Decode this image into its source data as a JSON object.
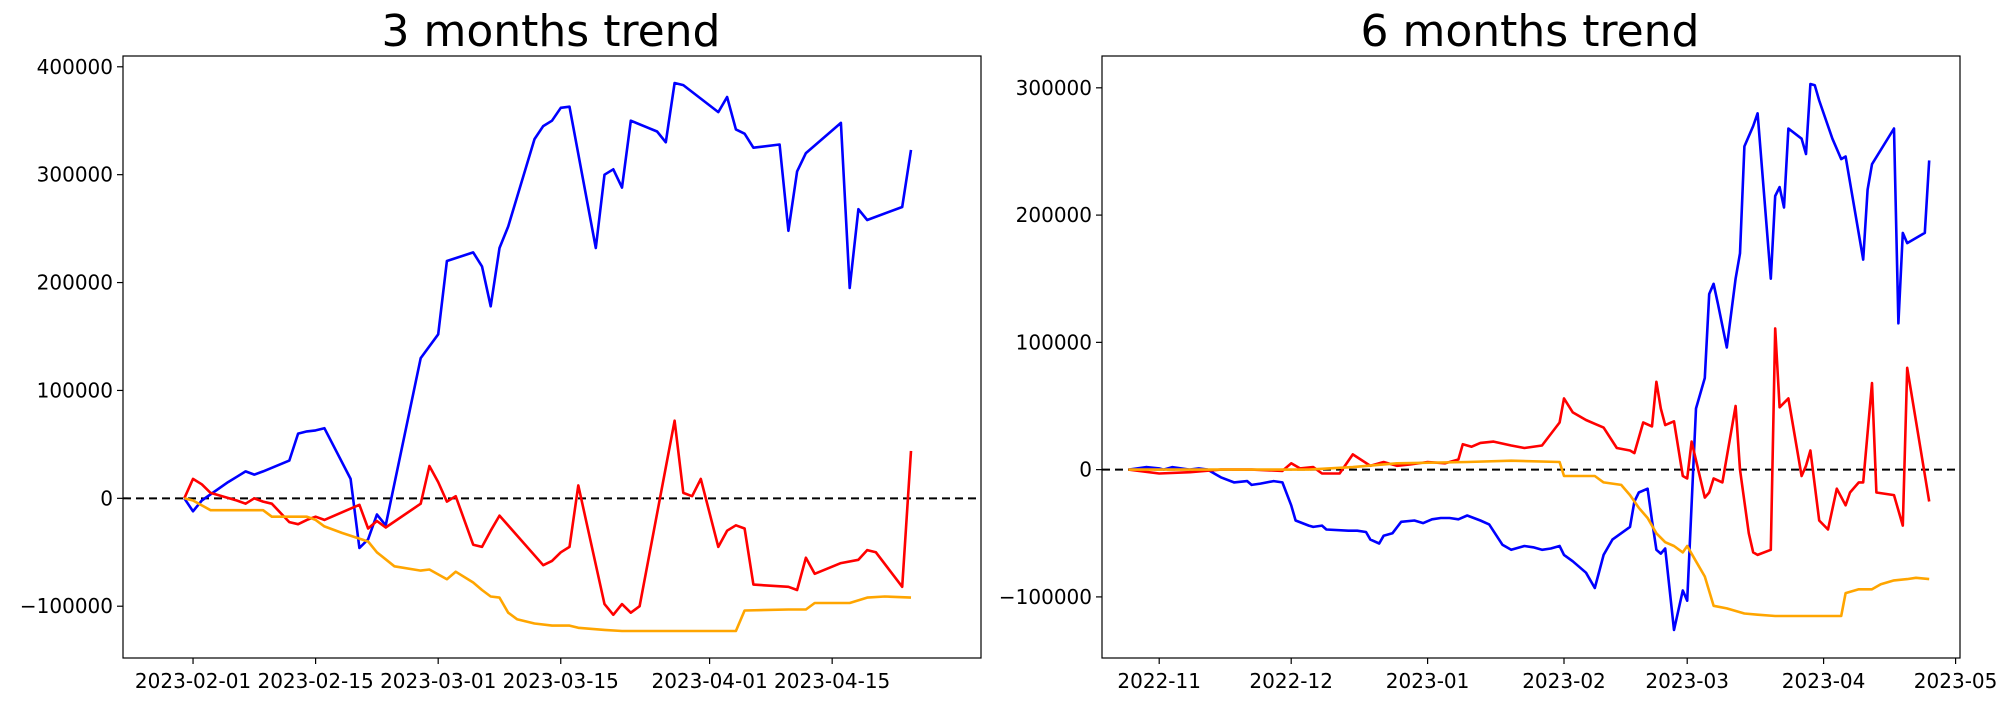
{
  "chart_data": [
    {
      "type": "line",
      "title": "3 months trend",
      "xlabel": "",
      "ylabel": "",
      "x_type": "date",
      "xlim": [
        "2023-01-24",
        "2023-05-02"
      ],
      "ylim": [
        -148000,
        410000
      ],
      "x_ticks": [
        {
          "value": "2023-02-01",
          "label": "2023-02-01"
        },
        {
          "value": "2023-02-15",
          "label": "2023-02-15"
        },
        {
          "value": "2023-03-01",
          "label": "2023-03-01"
        },
        {
          "value": "2023-03-15",
          "label": "2023-03-15"
        },
        {
          "value": "2023-04-01",
          "label": "2023-04-01"
        },
        {
          "value": "2023-04-15",
          "label": "2023-04-15"
        }
      ],
      "y_ticks": [
        {
          "value": -100000,
          "label": "−100000"
        },
        {
          "value": 0,
          "label": "0"
        },
        {
          "value": 100000,
          "label": "100000"
        },
        {
          "value": 200000,
          "label": "200000"
        },
        {
          "value": 300000,
          "label": "300000"
        },
        {
          "value": 400000,
          "label": "400000"
        }
      ],
      "grid": false,
      "reference_line": {
        "y": 0,
        "style": "dashed",
        "color": "#000000"
      },
      "series": [
        {
          "color": "#0000ff",
          "x": [
            "2023-01-31",
            "2023-02-01",
            "2023-02-02",
            "2023-02-05",
            "2023-02-06",
            "2023-02-07",
            "2023-02-08",
            "2023-02-09",
            "2023-02-12",
            "2023-02-13",
            "2023-02-14",
            "2023-02-15",
            "2023-02-16",
            "2023-02-19",
            "2023-02-20",
            "2023-02-21",
            "2023-02-22",
            "2023-02-23",
            "2023-02-27",
            "2023-03-01",
            "2023-03-02",
            "2023-03-05",
            "2023-03-06",
            "2023-03-07",
            "2023-03-08",
            "2023-03-09",
            "2023-03-12",
            "2023-03-13",
            "2023-03-14",
            "2023-03-15",
            "2023-03-16",
            "2023-03-19",
            "2023-03-20",
            "2023-03-21",
            "2023-03-22",
            "2023-03-23",
            "2023-03-26",
            "2023-03-27",
            "2023-03-28",
            "2023-03-29",
            "2023-04-02",
            "2023-04-03",
            "2023-04-04",
            "2023-04-05",
            "2023-04-06",
            "2023-04-09",
            "2023-04-10",
            "2023-04-11",
            "2023-04-12",
            "2023-04-16",
            "2023-04-17",
            "2023-04-18",
            "2023-04-19",
            "2023-04-23",
            "2023-04-24"
          ],
          "values": [
            0,
            -12000,
            -2000,
            15000,
            20000,
            25000,
            22000,
            25000,
            35000,
            60000,
            62000,
            63000,
            65000,
            18000,
            -46000,
            -38000,
            -15000,
            -25000,
            130000,
            152000,
            220000,
            228000,
            215000,
            178000,
            232000,
            252000,
            333000,
            345000,
            350000,
            362000,
            363000,
            232000,
            300000,
            305000,
            288000,
            350000,
            340000,
            330000,
            385000,
            383000,
            358000,
            372000,
            342000,
            338000,
            325000,
            328000,
            248000,
            303000,
            320000,
            348000,
            195000,
            268000,
            258000,
            270000,
            323000
          ]
        },
        {
          "color": "#ff0000",
          "x": [
            "2023-01-31",
            "2023-02-01",
            "2023-02-02",
            "2023-02-03",
            "2023-02-06",
            "2023-02-07",
            "2023-02-08",
            "2023-02-09",
            "2023-02-10",
            "2023-02-12",
            "2023-02-13",
            "2023-02-14",
            "2023-02-15",
            "2023-02-16",
            "2023-02-20",
            "2023-02-21",
            "2023-02-22",
            "2023-02-23",
            "2023-02-27",
            "2023-02-28",
            "2023-03-01",
            "2023-03-02",
            "2023-03-03",
            "2023-03-05",
            "2023-03-06",
            "2023-03-07",
            "2023-03-08",
            "2023-03-13",
            "2023-03-14",
            "2023-03-15",
            "2023-03-16",
            "2023-03-17",
            "2023-03-20",
            "2023-03-21",
            "2023-03-22",
            "2023-03-23",
            "2023-03-24",
            "2023-03-28",
            "2023-03-29",
            "2023-03-30",
            "2023-03-31",
            "2023-04-02",
            "2023-04-03",
            "2023-04-04",
            "2023-04-05",
            "2023-04-06",
            "2023-04-10",
            "2023-04-11",
            "2023-04-12",
            "2023-04-13",
            "2023-04-16",
            "2023-04-18",
            "2023-04-19",
            "2023-04-20",
            "2023-04-23",
            "2023-04-24"
          ],
          "values": [
            0,
            18000,
            13000,
            5000,
            -2000,
            -5000,
            0,
            -3000,
            -5000,
            -22000,
            -24000,
            -20000,
            -17000,
            -20000,
            -6000,
            -28000,
            -21000,
            -27000,
            -5000,
            30000,
            15000,
            -3000,
            2000,
            -43000,
            -45000,
            -30000,
            -16000,
            -62000,
            -58000,
            -50000,
            -45000,
            12000,
            -98000,
            -108000,
            -98000,
            -106000,
            -100000,
            72000,
            5000,
            2000,
            18000,
            -45000,
            -30000,
            -25000,
            -28000,
            -80000,
            -82000,
            -85000,
            -55000,
            -70000,
            -60000,
            -57000,
            -48000,
            -50000,
            -82000,
            44000
          ]
        },
        {
          "color": "#ffa500",
          "x": [
            "2023-01-31",
            "2023-02-01",
            "2023-02-03",
            "2023-02-09",
            "2023-02-10",
            "2023-02-14",
            "2023-02-15",
            "2023-02-16",
            "2023-02-18",
            "2023-02-21",
            "2023-02-22",
            "2023-02-24",
            "2023-02-27",
            "2023-02-28",
            "2023-03-02",
            "2023-03-03",
            "2023-03-05",
            "2023-03-06",
            "2023-03-07",
            "2023-03-08",
            "2023-03-09",
            "2023-03-10",
            "2023-03-12",
            "2023-03-14",
            "2023-03-16",
            "2023-03-17",
            "2023-03-20",
            "2023-03-22",
            "2023-03-30",
            "2023-04-03",
            "2023-04-04",
            "2023-04-05",
            "2023-04-10",
            "2023-04-12",
            "2023-04-13",
            "2023-04-17",
            "2023-04-19",
            "2023-04-21",
            "2023-04-24"
          ],
          "values": [
            0,
            -2000,
            -11000,
            -11000,
            -17000,
            -17000,
            -20000,
            -26000,
            -32000,
            -40000,
            -50000,
            -63000,
            -67000,
            -66000,
            -75000,
            -68000,
            -78000,
            -85000,
            -91000,
            -92000,
            -106000,
            -112000,
            -116000,
            -118000,
            -118000,
            -120000,
            -122000,
            -123000,
            -123000,
            -123000,
            -123000,
            -104000,
            -103000,
            -103000,
            -97000,
            -97000,
            -92000,
            -91000,
            -92000
          ]
        }
      ]
    },
    {
      "type": "line",
      "title": "6 months trend",
      "xlabel": "",
      "ylabel": "",
      "x_type": "date",
      "xlim": [
        "2022-10-19",
        "2023-05-02"
      ],
      "ylim": [
        -148000,
        325000
      ],
      "x_ticks": [
        {
          "value": "2022-11-01",
          "label": "2022-11"
        },
        {
          "value": "2022-12-01",
          "label": "2022-12"
        },
        {
          "value": "2023-01-01",
          "label": "2023-01"
        },
        {
          "value": "2023-02-01",
          "label": "2023-02"
        },
        {
          "value": "2023-03-01",
          "label": "2023-03"
        },
        {
          "value": "2023-04-01",
          "label": "2023-04"
        },
        {
          "value": "2023-05-01",
          "label": "2023-05"
        }
      ],
      "y_ticks": [
        {
          "value": -100000,
          "label": "−100000"
        },
        {
          "value": 0,
          "label": "0"
        },
        {
          "value": 100000,
          "label": "100000"
        },
        {
          "value": 200000,
          "label": "200000"
        },
        {
          "value": 300000,
          "label": "300000"
        }
      ],
      "grid": false,
      "reference_line": {
        "y": 0,
        "style": "dashed",
        "color": "#000000"
      },
      "series": [
        {
          "color": "#0000ff",
          "x": [
            "2022-10-25",
            "2022-10-29",
            "2022-11-01",
            "2022-11-02",
            "2022-11-04",
            "2022-11-08",
            "2022-11-10",
            "2022-11-12",
            "2022-11-14",
            "2022-11-15",
            "2022-11-18",
            "2022-11-21",
            "2022-11-22",
            "2022-11-24",
            "2022-11-27",
            "2022-11-29",
            "2022-12-01",
            "2022-12-02",
            "2022-12-05",
            "2022-12-06",
            "2022-12-08",
            "2022-12-09",
            "2022-12-14",
            "2022-12-16",
            "2022-12-18",
            "2022-12-19",
            "2022-12-21",
            "2022-12-22",
            "2022-12-24",
            "2022-12-26",
            "2022-12-29",
            "2022-12-31",
            "2023-01-02",
            "2023-01-04",
            "2023-01-06",
            "2023-01-08",
            "2023-01-10",
            "2023-01-13",
            "2023-01-15",
            "2023-01-18",
            "2023-01-20",
            "2023-01-23",
            "2023-01-25",
            "2023-01-27",
            "2023-01-29",
            "2023-01-31",
            "2023-02-01",
            "2023-02-03",
            "2023-02-06",
            "2023-02-08",
            "2023-02-09",
            "2023-02-10",
            "2023-02-12",
            "2023-02-16",
            "2023-02-17",
            "2023-02-18",
            "2023-02-20",
            "2023-02-21",
            "2023-02-22",
            "2023-02-23",
            "2023-02-24",
            "2023-02-26",
            "2023-02-28",
            "2023-03-01",
            "2023-03-03",
            "2023-03-05",
            "2023-03-06",
            "2023-03-07",
            "2023-03-08",
            "2023-03-10",
            "2023-03-12",
            "2023-03-13",
            "2023-03-14",
            "2023-03-16",
            "2023-03-17",
            "2023-03-20",
            "2023-03-21",
            "2023-03-22",
            "2023-03-23",
            "2023-03-24",
            "2023-03-27",
            "2023-03-28",
            "2023-03-29",
            "2023-03-30",
            "2023-03-31",
            "2023-04-03",
            "2023-04-04",
            "2023-04-05",
            "2023-04-06",
            "2023-04-10",
            "2023-04-11",
            "2023-04-12",
            "2023-04-17",
            "2023-04-18",
            "2023-04-19",
            "2023-04-20",
            "2023-04-24",
            "2023-04-25"
          ],
          "values": [
            0,
            2000,
            1000,
            0,
            2000,
            0,
            1000,
            0,
            -4000,
            -6000,
            -10000,
            -9000,
            -12000,
            -11000,
            -9000,
            -10000,
            -28000,
            -40000,
            -44000,
            -45000,
            -44000,
            -47000,
            -48000,
            -48000,
            -49000,
            -55000,
            -58000,
            -52000,
            -50000,
            -41000,
            -40000,
            -42000,
            -39000,
            -38000,
            -38000,
            -39000,
            -36000,
            -40000,
            -43000,
            -59000,
            -63000,
            -60000,
            -61000,
            -63000,
            -62000,
            -60000,
            -67000,
            -72000,
            -81000,
            -93000,
            -80000,
            -67000,
            -55000,
            -45000,
            -25000,
            -18000,
            -15000,
            -40000,
            -63000,
            -66000,
            -62000,
            -126000,
            -95000,
            -103000,
            48000,
            72000,
            138000,
            146000,
            130000,
            96000,
            150000,
            170000,
            254000,
            270000,
            280000,
            150000,
            215000,
            222000,
            206000,
            268000,
            260000,
            248000,
            303000,
            302000,
            290000,
            260000,
            252000,
            244000,
            246000,
            165000,
            220000,
            240000,
            268000,
            115000,
            186000,
            178000,
            186000,
            243000
          ]
        },
        {
          "color": "#ff0000",
          "x": [
            "2022-10-25",
            "2022-11-01",
            "2022-11-08",
            "2022-11-15",
            "2022-11-22",
            "2022-11-29",
            "2022-12-01",
            "2022-12-03",
            "2022-12-06",
            "2022-12-08",
            "2022-12-12",
            "2022-12-15",
            "2022-12-19",
            "2022-12-22",
            "2022-12-25",
            "2022-12-28",
            "2023-01-01",
            "2023-01-05",
            "2023-01-08",
            "2023-01-09",
            "2023-01-11",
            "2023-01-13",
            "2023-01-16",
            "2023-01-20",
            "2023-01-23",
            "2023-01-27",
            "2023-01-31",
            "2023-02-01",
            "2023-02-03",
            "2023-02-06",
            "2023-02-08",
            "2023-02-10",
            "2023-02-13",
            "2023-02-16",
            "2023-02-17",
            "2023-02-19",
            "2023-02-21",
            "2023-02-22",
            "2023-02-23",
            "2023-02-24",
            "2023-02-26",
            "2023-02-28",
            "2023-03-01",
            "2023-03-02",
            "2023-03-05",
            "2023-03-06",
            "2023-03-07",
            "2023-03-09",
            "2023-03-12",
            "2023-03-13",
            "2023-03-14",
            "2023-03-15",
            "2023-03-16",
            "2023-03-17",
            "2023-03-20",
            "2023-03-21",
            "2023-03-22",
            "2023-03-24",
            "2023-03-27",
            "2023-03-28",
            "2023-03-29",
            "2023-03-31",
            "2023-04-02",
            "2023-04-04",
            "2023-04-06",
            "2023-04-07",
            "2023-04-09",
            "2023-04-10",
            "2023-04-12",
            "2023-04-13",
            "2023-04-17",
            "2023-04-19",
            "2023-04-20",
            "2023-04-24",
            "2023-04-25"
          ],
          "values": [
            0,
            -3000,
            -2000,
            0,
            0,
            -1000,
            5000,
            1000,
            2000,
            -3000,
            -3000,
            12000,
            3000,
            6000,
            3000,
            4000,
            6000,
            5000,
            8000,
            20000,
            18000,
            21000,
            22000,
            19000,
            17000,
            19000,
            37000,
            56000,
            45000,
            39000,
            36000,
            33000,
            17000,
            15000,
            13000,
            37000,
            34000,
            69000,
            48000,
            35000,
            38000,
            -5000,
            -7000,
            22000,
            -22000,
            -18000,
            -7000,
            -10000,
            50000,
            0,
            -25000,
            -50000,
            -65000,
            -67000,
            -63000,
            111000,
            49000,
            56000,
            -5000,
            3000,
            15000,
            -40000,
            -47000,
            -15000,
            -28000,
            -18000,
            -10000,
            -10000,
            68000,
            -18000,
            -20000,
            -44000,
            80000,
            -4000,
            -25000
          ]
        },
        {
          "color": "#ffa500",
          "x": [
            "2022-10-25",
            "2022-11-15",
            "2022-12-05",
            "2022-12-15",
            "2022-12-25",
            "2023-01-10",
            "2023-01-20",
            "2023-01-31",
            "2023-02-01",
            "2023-02-03",
            "2023-02-08",
            "2023-02-10",
            "2023-02-14",
            "2023-02-16",
            "2023-02-18",
            "2023-02-20",
            "2023-02-22",
            "2023-02-24",
            "2023-02-26",
            "2023-02-28",
            "2023-03-01",
            "2023-03-03",
            "2023-03-05",
            "2023-03-07",
            "2023-03-10",
            "2023-03-14",
            "2023-03-17",
            "2023-03-21",
            "2023-03-31",
            "2023-04-05",
            "2023-04-06",
            "2023-04-09",
            "2023-04-12",
            "2023-04-14",
            "2023-04-17",
            "2023-04-20",
            "2023-04-22",
            "2023-04-25"
          ],
          "values": [
            0,
            0,
            0,
            2000,
            5000,
            6000,
            7000,
            6000,
            -5000,
            -5000,
            -5000,
            -10000,
            -12000,
            -20000,
            -30000,
            -38000,
            -50000,
            -57000,
            -60000,
            -65000,
            -60000,
            -72000,
            -84000,
            -107000,
            -109000,
            -113000,
            -114000,
            -115000,
            -115000,
            -115000,
            -97000,
            -94000,
            -94000,
            -90000,
            -87000,
            -86000,
            -85000,
            -86000
          ]
        }
      ]
    }
  ]
}
